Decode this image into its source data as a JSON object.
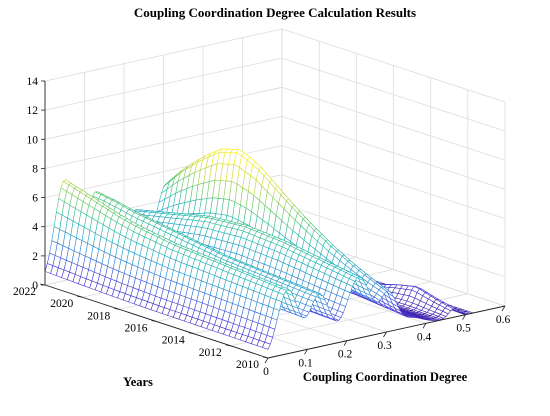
{
  "chart_data": {
    "type": "surface",
    "title": "Coupling Coordination Degree Calculation Results",
    "xlabel": "Coupling Coordination Degree",
    "ylabel": "Years",
    "zlabel": "",
    "xlim": [
      0,
      0.6
    ],
    "ylim": [
      2010,
      2022
    ],
    "zlim": [
      0,
      14
    ],
    "x_ticks": [
      "0",
      "0.1",
      "0.2",
      "0.3",
      "0.4",
      "0.5",
      "0.6"
    ],
    "y_ticks": [
      "2010",
      "2012",
      "2014",
      "2016",
      "2018",
      "2020",
      "2022"
    ],
    "z_ticks": [
      "0",
      "2",
      "4",
      "6",
      "8",
      "10",
      "12",
      "14"
    ],
    "grid": true,
    "colormap": [
      "#3b1ea8",
      "#4a3fe0",
      "#2f86d6",
      "#1fb5b8",
      "#5cc86b",
      "#c9d63e",
      "#f7ec1f"
    ],
    "peaks": [
      {
        "x": 0.05,
        "sigma": 0.025,
        "heights": [
          4.4,
          4.5,
          4.6,
          4.7,
          4.8,
          4.9,
          5.0,
          5.2,
          5.4,
          5.7,
          6.1,
          6.5,
          6.9
        ]
      },
      {
        "x": 0.13,
        "sigma": 0.025,
        "heights": [
          3.6,
          3.7,
          3.8,
          3.9,
          4.0,
          4.1,
          4.3,
          4.5,
          4.7,
          4.9,
          5.1,
          5.4,
          5.6
        ]
      },
      {
        "x": 0.23,
        "sigma": 0.03,
        "heights": [
          4.2,
          4.4,
          4.6,
          4.8,
          5.0,
          5.1,
          5.2,
          5.1,
          5.0,
          4.7,
          4.4,
          4.1,
          3.8
        ]
      },
      {
        "x": 0.305,
        "sigma": 0.02,
        "heights": [
          2.5,
          3.0,
          3.6,
          4.3,
          5.1,
          6.0,
          7.0,
          8.0,
          8.6,
          8.2,
          7.2,
          6.0,
          4.5
        ]
      },
      {
        "x": 0.36,
        "sigma": 0.03,
        "heights": [
          0.6,
          0.7,
          0.8,
          0.9,
          1.0,
          1.2,
          1.4,
          1.6,
          1.8,
          2.0,
          2.2,
          2.3,
          2.4
        ]
      },
      {
        "x": 0.47,
        "sigma": 0.012,
        "heights": [
          0.6,
          0.9,
          1.3,
          1.0,
          0.6,
          0.4,
          0.3,
          0.3,
          0.3,
          0.3,
          0.3,
          0.3,
          0.3
        ]
      }
    ]
  }
}
